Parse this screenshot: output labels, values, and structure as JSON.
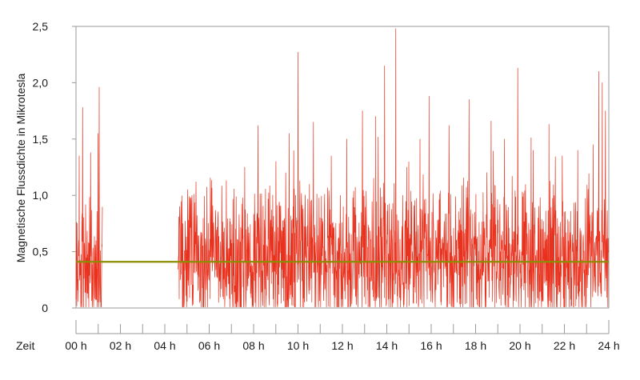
{
  "chart_data": {
    "type": "line",
    "title": "",
    "ylabel": "Magnetische Flussdichte in Mikrotesla",
    "xlabel": "Zeit",
    "ylim": [
      0,
      2.5
    ],
    "xlim": [
      0,
      24
    ],
    "grid": false,
    "yticks": [
      {
        "value": 0,
        "label": "0"
      },
      {
        "value": 0.5,
        "label": "0,5"
      },
      {
        "value": 1.0,
        "label": "1,0"
      },
      {
        "value": 1.5,
        "label": "1,5"
      },
      {
        "value": 2.0,
        "label": "2,0"
      },
      {
        "value": 2.5,
        "label": "2,5"
      }
    ],
    "xticks": [
      {
        "value": 0,
        "label": "00 h"
      },
      {
        "value": 2,
        "label": "02 h"
      },
      {
        "value": 4,
        "label": "04 h"
      },
      {
        "value": 6,
        "label": "06 h"
      },
      {
        "value": 8,
        "label": "08 h"
      },
      {
        "value": 10,
        "label": "10 h"
      },
      {
        "value": 12,
        "label": "12 h"
      },
      {
        "value": 14,
        "label": "14 h"
      },
      {
        "value": 16,
        "label": "16 h"
      },
      {
        "value": 18,
        "label": "18 h"
      },
      {
        "value": 20,
        "label": "20 h"
      },
      {
        "value": 22,
        "label": "22 h"
      },
      {
        "value": 24,
        "label": "24 h"
      }
    ],
    "series": [
      {
        "color": "#e8321e",
        "segments": [
          {
            "start": 0.0,
            "end": 1.2,
            "baseline": 0.35,
            "amplitude": 0.55
          },
          {
            "start": 4.6,
            "end": 24.0,
            "baseline": 0.45,
            "amplitude": 0.55
          }
        ],
        "peaks": [
          {
            "x": 0.3,
            "y": 1.78
          },
          {
            "x": 0.15,
            "y": 1.35
          },
          {
            "x": 1.05,
            "y": 1.96
          },
          {
            "x": 1.0,
            "y": 1.55
          },
          {
            "x": 5.4,
            "y": 1.12
          },
          {
            "x": 7.6,
            "y": 1.25
          },
          {
            "x": 8.2,
            "y": 1.62
          },
          {
            "x": 9.0,
            "y": 1.3
          },
          {
            "x": 9.6,
            "y": 1.55
          },
          {
            "x": 10.0,
            "y": 2.27
          },
          {
            "x": 10.7,
            "y": 1.65
          },
          {
            "x": 11.5,
            "y": 1.35
          },
          {
            "x": 12.2,
            "y": 1.5
          },
          {
            "x": 12.9,
            "y": 1.75
          },
          {
            "x": 13.5,
            "y": 1.7
          },
          {
            "x": 13.9,
            "y": 2.15
          },
          {
            "x": 14.4,
            "y": 2.48
          },
          {
            "x": 14.9,
            "y": 1.25
          },
          {
            "x": 15.5,
            "y": 1.5
          },
          {
            "x": 15.9,
            "y": 1.88
          },
          {
            "x": 16.8,
            "y": 1.62
          },
          {
            "x": 17.7,
            "y": 1.85
          },
          {
            "x": 18.7,
            "y": 1.66
          },
          {
            "x": 19.3,
            "y": 1.5
          },
          {
            "x": 19.9,
            "y": 2.13
          },
          {
            "x": 20.6,
            "y": 1.4
          },
          {
            "x": 21.3,
            "y": 1.63
          },
          {
            "x": 21.9,
            "y": 1.35
          },
          {
            "x": 22.6,
            "y": 1.4
          },
          {
            "x": 23.3,
            "y": 1.45
          },
          {
            "x": 23.55,
            "y": 2.1
          },
          {
            "x": 23.7,
            "y": 2.0
          },
          {
            "x": 23.85,
            "y": 1.75
          }
        ]
      },
      {
        "color": "#8c8c00",
        "constant": 0.41
      }
    ]
  }
}
